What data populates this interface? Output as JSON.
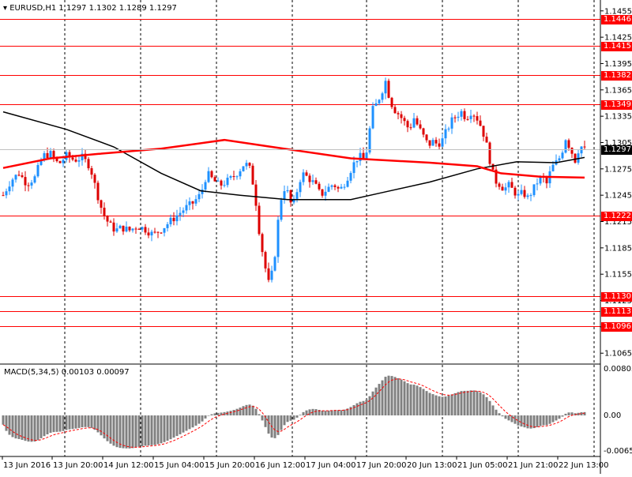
{
  "header": {
    "symbol": "EURUSD,H1",
    "ohlc": "1.1297 1.1302 1.1289 1.1297"
  },
  "macd": {
    "label": "MACD(5,34,5) 0.00103 0.00097",
    "ticks": [
      "0.00803",
      "0.00",
      "-0.00652"
    ]
  },
  "colors": {
    "bull": "#1e90ff",
    "bear": "#dd0000",
    "level": "#ff0000",
    "ma_red": "#ff0000",
    "ma_black": "#000000",
    "signal": "#ff0000",
    "hist": "#808080"
  },
  "chart_data": {
    "type": "candlestick",
    "price_ticks": [
      "1.1455",
      "1.1425",
      "1.1395",
      "1.1365",
      "1.1335",
      "1.1305",
      "1.1275",
      "1.1245",
      "1.1215",
      "1.1185",
      "1.1155",
      "1.1125",
      "1.1095",
      "1.1065"
    ],
    "time_labels": [
      "13 Jun 2016",
      "13 Jun 20:00",
      "14 Jun 12:00",
      "15 Jun 04:00",
      "15 Jun 20:00",
      "16 Jun 12:00",
      "17 Jun 04:00",
      "17 Jun 20:00",
      "20 Jun 13:00",
      "21 Jun 05:00",
      "21 Jun 21:00",
      "22 Jun 13:00"
    ],
    "ylim": [
      1.1058,
      1.1462
    ],
    "current_price": "1.1297",
    "levels": [
      {
        "label": "1.1446",
        "value": 1.1446
      },
      {
        "label": "1.1415",
        "value": 1.1415
      },
      {
        "label": "1.1382",
        "value": 1.1382
      },
      {
        "label": "1.1349",
        "value": 1.1349
      },
      {
        "label": "1.1222",
        "value": 1.1222
      },
      {
        "label": "1.1130",
        "value": 1.113
      },
      {
        "label": "1.1113",
        "value": 1.1113
      },
      {
        "label": "1.1096",
        "value": 1.1096
      }
    ],
    "close_path": [
      [
        0,
        1.1245
      ],
      [
        10,
        1.1262
      ],
      [
        20,
        1.127
      ],
      [
        30,
        1.1258
      ],
      [
        40,
        1.1265
      ],
      [
        50,
        1.129
      ],
      [
        60,
        1.1292
      ],
      [
        70,
        1.128
      ],
      [
        80,
        1.129
      ],
      [
        90,
        1.1285
      ],
      [
        100,
        1.1288
      ],
      [
        110,
        1.1278
      ],
      [
        118,
        1.125
      ],
      [
        126,
        1.1225
      ],
      [
        134,
        1.1212
      ],
      [
        142,
        1.1205
      ],
      [
        150,
        1.1208
      ],
      [
        160,
        1.1205
      ],
      [
        170,
        1.121
      ],
      [
        180,
        1.1206
      ],
      [
        190,
        1.12
      ],
      [
        200,
        1.1206
      ],
      [
        210,
        1.1214
      ],
      [
        220,
        1.1222
      ],
      [
        230,
        1.123
      ],
      [
        240,
        1.1236
      ],
      [
        250,
        1.1246
      ],
      [
        258,
        1.127
      ],
      [
        266,
        1.1262
      ],
      [
        274,
        1.1256
      ],
      [
        282,
        1.126
      ],
      [
        290,
        1.1265
      ],
      [
        298,
        1.1272
      ],
      [
        306,
        1.1282
      ],
      [
        312,
        1.1275
      ],
      [
        318,
        1.1252
      ],
      [
        324,
        1.1205
      ],
      [
        330,
        1.117
      ],
      [
        336,
        1.1145
      ],
      [
        342,
        1.116
      ],
      [
        348,
        1.1215
      ],
      [
        354,
        1.1255
      ],
      [
        360,
        1.1248
      ],
      [
        366,
        1.123
      ],
      [
        372,
        1.125
      ],
      [
        378,
        1.127
      ],
      [
        386,
        1.1265
      ],
      [
        394,
        1.1258
      ],
      [
        402,
        1.1245
      ],
      [
        410,
        1.1252
      ],
      [
        418,
        1.1258
      ],
      [
        426,
        1.125
      ],
      [
        434,
        1.1262
      ],
      [
        442,
        1.1278
      ],
      [
        450,
        1.129
      ],
      [
        456,
        1.1286
      ],
      [
        462,
        1.13
      ],
      [
        466,
        1.134
      ],
      [
        472,
        1.1348
      ],
      [
        478,
        1.136
      ],
      [
        484,
        1.1375
      ],
      [
        490,
        1.1352
      ],
      [
        496,
        1.1342
      ],
      [
        502,
        1.1336
      ],
      [
        508,
        1.1328
      ],
      [
        514,
        1.132
      ],
      [
        520,
        1.1333
      ],
      [
        526,
        1.1322
      ],
      [
        532,
        1.1312
      ],
      [
        538,
        1.1302
      ],
      [
        544,
        1.1306
      ],
      [
        550,
        1.1303
      ],
      [
        556,
        1.1308
      ],
      [
        562,
        1.132
      ],
      [
        568,
        1.133
      ],
      [
        574,
        1.1336
      ],
      [
        580,
        1.134
      ],
      [
        586,
        1.1333
      ],
      [
        592,
        1.134
      ],
      [
        598,
        1.1336
      ],
      [
        604,
        1.1325
      ],
      [
        610,
        1.131
      ],
      [
        616,
        1.1285
      ],
      [
        622,
        1.1262
      ],
      [
        628,
        1.1258
      ],
      [
        634,
        1.1252
      ],
      [
        640,
        1.1256
      ],
      [
        646,
        1.125
      ],
      [
        652,
        1.1244
      ],
      [
        658,
        1.1248
      ],
      [
        664,
        1.1242
      ],
      [
        670,
        1.125
      ],
      [
        676,
        1.126
      ],
      [
        682,
        1.1266
      ],
      [
        688,
        1.1258
      ],
      [
        694,
        1.1276
      ],
      [
        700,
        1.1282
      ],
      [
        706,
        1.129
      ],
      [
        712,
        1.131
      ],
      [
        718,
        1.1298
      ],
      [
        724,
        1.1285
      ],
      [
        730,
        1.1302
      ],
      [
        736,
        1.1297
      ]
    ],
    "ma_fast": [
      [
        0,
        1.1276
      ],
      [
        60,
        1.1287
      ],
      [
        120,
        1.1292
      ],
      [
        200,
        1.1298
      ],
      [
        280,
        1.1308
      ],
      [
        340,
        1.13
      ],
      [
        440,
        1.1287
      ],
      [
        540,
        1.1282
      ],
      [
        600,
        1.1278
      ],
      [
        630,
        1.127
      ],
      [
        680,
        1.1266
      ],
      [
        736,
        1.1265
      ]
    ],
    "ma_slow": [
      [
        0,
        1.134
      ],
      [
        80,
        1.132
      ],
      [
        140,
        1.13
      ],
      [
        200,
        1.127
      ],
      [
        250,
        1.125
      ],
      [
        300,
        1.1245
      ],
      [
        360,
        1.124
      ],
      [
        440,
        1.124
      ],
      [
        480,
        1.1248
      ],
      [
        540,
        1.126
      ],
      [
        600,
        1.1275
      ],
      [
        650,
        1.1283
      ],
      [
        700,
        1.1282
      ],
      [
        736,
        1.1288
      ]
    ]
  }
}
